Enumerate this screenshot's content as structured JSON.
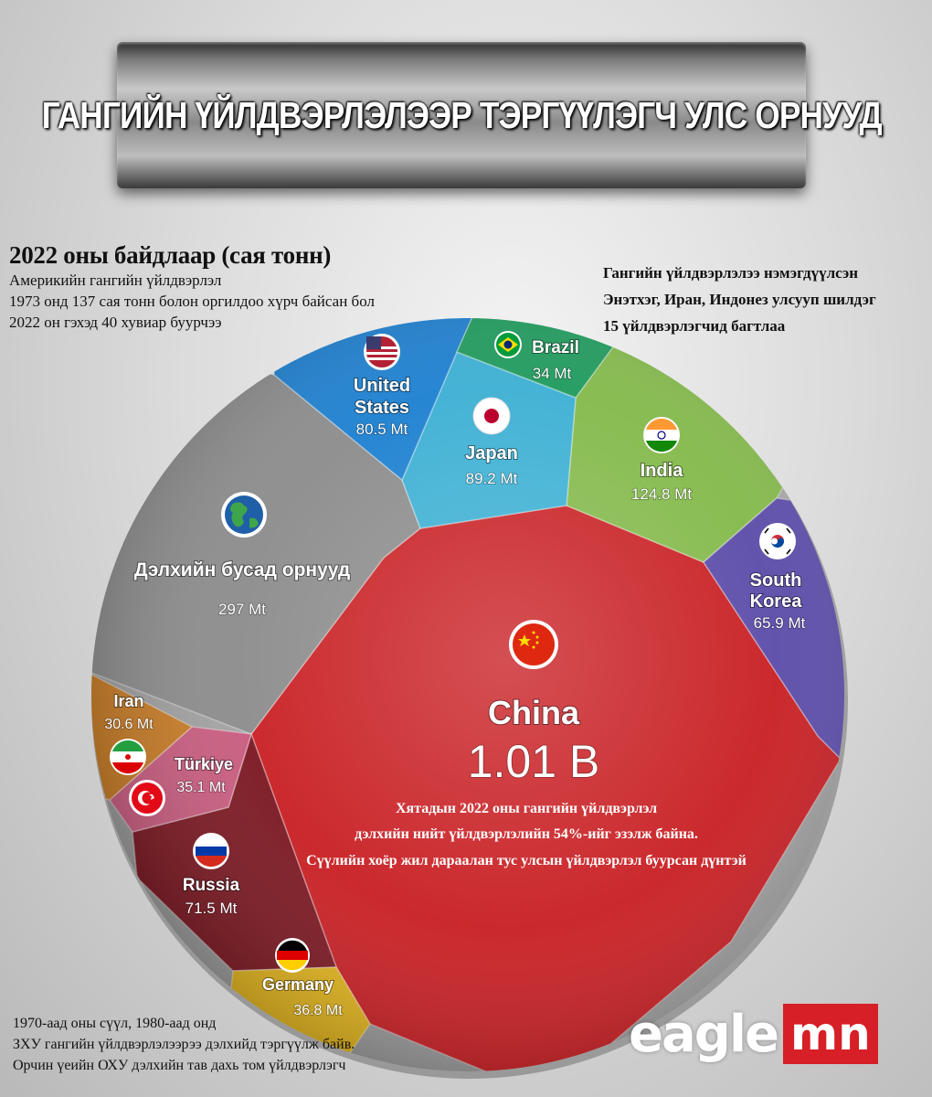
{
  "title": "ГАНГИЙН ҮЙЛДВЭРЛЭЛЭЭР ТЭРГҮҮЛЭГЧ УЛС ОРНУУД",
  "notes": {
    "top_left": {
      "heading": "2022 оны байдлаар (сая тонн)",
      "lines": [
        "Америкийн гангийн үйлдвэрлэл",
        "1973 онд 137 сая тонн болон оргилдоо хүрч байсан бол",
        "2022 он гэхэд 40 хувиар буурчээ"
      ]
    },
    "top_right": {
      "lines": [
        "Гангийн үйлдвэрлэлээ нэмэгдүүлсэн",
        "Энэтхэг, Иран, Индонез улсууп шилдэг",
        "15 үйлдвэрлэгчид багтлаа"
      ]
    },
    "bottom_left": {
      "lines": [
        "1970-аад оны сүүл, 1980-аад онд",
        "ЗХУ гангийн үйлдвэрлэлээрээ дэлхийд тэргүүлж байв.",
        "Орчин үеийн ОХУ дэлхийн тав дахь том үйлдвэрлэгч"
      ]
    }
  },
  "china_note": [
    "Хятадын 2022 оны гангийн үйлдвэрлэл",
    "дэлхийн нийт үйлдвэрлэлийн 54%-ийг эзэлж байна.",
    "Сүүлийн хоёр жил дараалан тус улсын үйлдвэрлэл буурсан дүнтэй"
  ],
  "logo": {
    "main": "eagle",
    "suffix": "mn"
  },
  "chart_data": {
    "type": "voronoi",
    "unit": "Mt",
    "cells": [
      {
        "key": "china",
        "label": "China",
        "value_text": "1.01 B",
        "value_mt": 1010,
        "color": "#c81e22",
        "icon": "china-flag-icon"
      },
      {
        "key": "rest",
        "label": "Дэлхийн бусад орнууд",
        "value_text": "297 Mt",
        "value_mt": 297,
        "color": "#8b8b8b",
        "icon": "globe-icon"
      },
      {
        "key": "india",
        "label": "India",
        "value_text": "124.8 Mt",
        "value_mt": 124.8,
        "color": "#83b94a",
        "icon": "india-flag-icon"
      },
      {
        "key": "japan",
        "label": "Japan",
        "value_text": "89.2 Mt",
        "value_mt": 89.2,
        "color": "#3bafd3",
        "icon": "japan-flag-icon"
      },
      {
        "key": "us",
        "label": "United States",
        "value_text": "80.5 Mt",
        "value_mt": 80.5,
        "color": "#1b7fd0",
        "icon": "usa-flag-icon"
      },
      {
        "key": "russia",
        "label": "Russia",
        "value_text": "71.5 Mt",
        "value_mt": 71.5,
        "color": "#7a1620",
        "icon": "russia-flag-icon"
      },
      {
        "key": "skorea",
        "label": "South Korea",
        "value_text": "65.9 Mt",
        "value_mt": 65.9,
        "color": "#5a4aa8",
        "icon": "south-korea-flag-icon"
      },
      {
        "key": "germany",
        "label": "Germany",
        "value_text": "36.8 Mt",
        "value_mt": 36.8,
        "color": "#e2b41d",
        "icon": "germany-flag-icon"
      },
      {
        "key": "turkiye",
        "label": "Türkiye",
        "value_text": "35.1 Mt",
        "value_mt": 35.1,
        "color": "#c85a7e",
        "icon": "turkiye-flag-icon"
      },
      {
        "key": "brazil",
        "label": "Brazil",
        "value_text": "34 Mt",
        "value_mt": 34,
        "color": "#1e9a5c",
        "icon": "brazil-flag-icon"
      },
      {
        "key": "iran",
        "label": "Iran",
        "value_text": "30.6 Mt",
        "value_mt": 30.6,
        "color": "#c77a23",
        "icon": "iran-flag-icon"
      }
    ]
  }
}
